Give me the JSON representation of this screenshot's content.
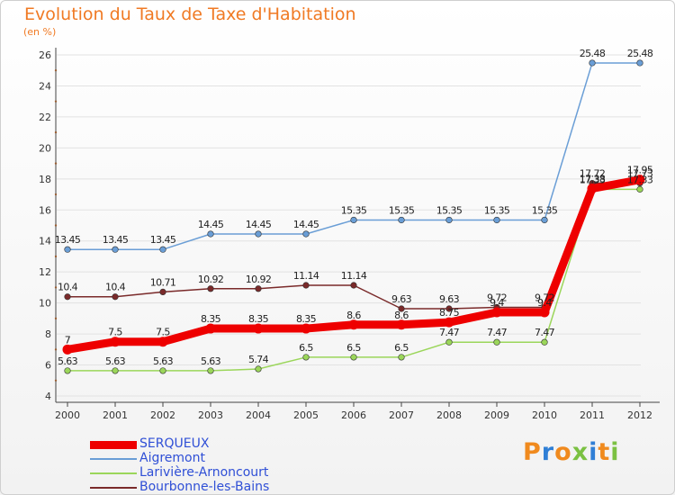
{
  "header": {
    "title": "Evolution du Taux de Taxe d'Habitation",
    "subtitle": "(en %)"
  },
  "logo": {
    "text": "Proxiti"
  },
  "chart_data": {
    "type": "line",
    "title": "Evolution du Taux de Taxe d'Habitation",
    "ylabel": "(en %)",
    "xlabel": "",
    "x": [
      "2000",
      "2001",
      "2002",
      "2003",
      "2004",
      "2005",
      "2006",
      "2007",
      "2008",
      "2009",
      "2010",
      "2011",
      "2012"
    ],
    "ylim": [
      4,
      26
    ],
    "yticks": [
      "4",
      "6",
      "8",
      "10",
      "12",
      "14",
      "16",
      "18",
      "20",
      "22",
      "24",
      "26"
    ],
    "grid": "horizontal",
    "legend_position": "bottom-left",
    "series": [
      {
        "name": "SERQUEUX",
        "color": "#ee0000",
        "emphasis": true,
        "values": [
          7,
          7.5,
          7.5,
          8.35,
          8.35,
          8.35,
          8.6,
          8.6,
          8.75,
          9.4,
          9.4,
          17.38,
          17.95
        ],
        "labels": [
          "7",
          "7.5",
          "7.5",
          "8.35",
          "8.35",
          "8.35",
          "8.6",
          "8.6",
          "8.75",
          "9.4",
          "9.4",
          "17.38",
          "17.95"
        ]
      },
      {
        "name": "Aigremont",
        "color": "#6a9ed6",
        "values": [
          13.45,
          13.45,
          13.45,
          14.45,
          14.45,
          14.45,
          15.35,
          15.35,
          15.35,
          15.35,
          15.35,
          25.48,
          25.48
        ],
        "labels": [
          "13.45",
          "13.45",
          "13.45",
          "14.45",
          "14.45",
          "14.45",
          "15.35",
          "15.35",
          "15.35",
          "15.35",
          "15.35",
          "25.48",
          "25.48"
        ]
      },
      {
        "name": "Larivière-Arnoncourt",
        "color": "#9bd65a",
        "values": [
          5.63,
          5.63,
          5.63,
          5.63,
          5.74,
          6.5,
          6.5,
          6.5,
          7.47,
          7.47,
          7.47,
          17.33,
          17.33
        ],
        "labels": [
          "5.63",
          "5.63",
          "5.63",
          "5.63",
          "5.74",
          "6.5",
          "6.5",
          "6.5",
          "7.47",
          "7.47",
          "7.47",
          "17.33",
          "17.33"
        ]
      },
      {
        "name": "Bourbonne-les-Bains",
        "color": "#7a2a2a",
        "values": [
          10.4,
          10.4,
          10.71,
          10.92,
          10.92,
          11.14,
          11.14,
          9.63,
          9.63,
          9.72,
          9.72,
          17.72,
          17.73
        ],
        "labels": [
          "10.4",
          "10.4",
          "10.71",
          "10.92",
          "10.92",
          "11.14",
          "11.14",
          "9.63",
          "9.63",
          "9.72",
          "9.72",
          "17.72",
          "17.73"
        ]
      }
    ]
  }
}
